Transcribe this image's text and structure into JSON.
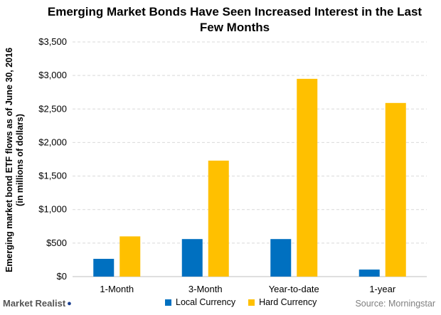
{
  "brand": {
    "logo_text": "Market Realist"
  },
  "source_text": "Source: Morningstar",
  "chart_data": {
    "type": "bar",
    "title": "Emerging Market Bonds Have Seen Increased Interest in the Last Few Months",
    "ylabel": "Emerging market bond ETF flows as of June 30, 2016 (in millions of dollars)",
    "xlabel": "",
    "categories": [
      "1-Month",
      "3-Month",
      "Year-to-date",
      "1-year"
    ],
    "series": [
      {
        "name": "Local Currency",
        "color": "#0070c0",
        "values": [
          265,
          560,
          560,
          105
        ]
      },
      {
        "name": "Hard Currency",
        "color": "#ffc000",
        "values": [
          600,
          1730,
          2950,
          2590
        ]
      }
    ],
    "ylim": [
      0,
      3500
    ],
    "yticks": [
      "$0",
      "$500",
      "$1,000",
      "$1,500",
      "$2,000",
      "$2,500",
      "$3,000",
      "$3,500"
    ],
    "grid": true,
    "legend_position": "bottom"
  }
}
